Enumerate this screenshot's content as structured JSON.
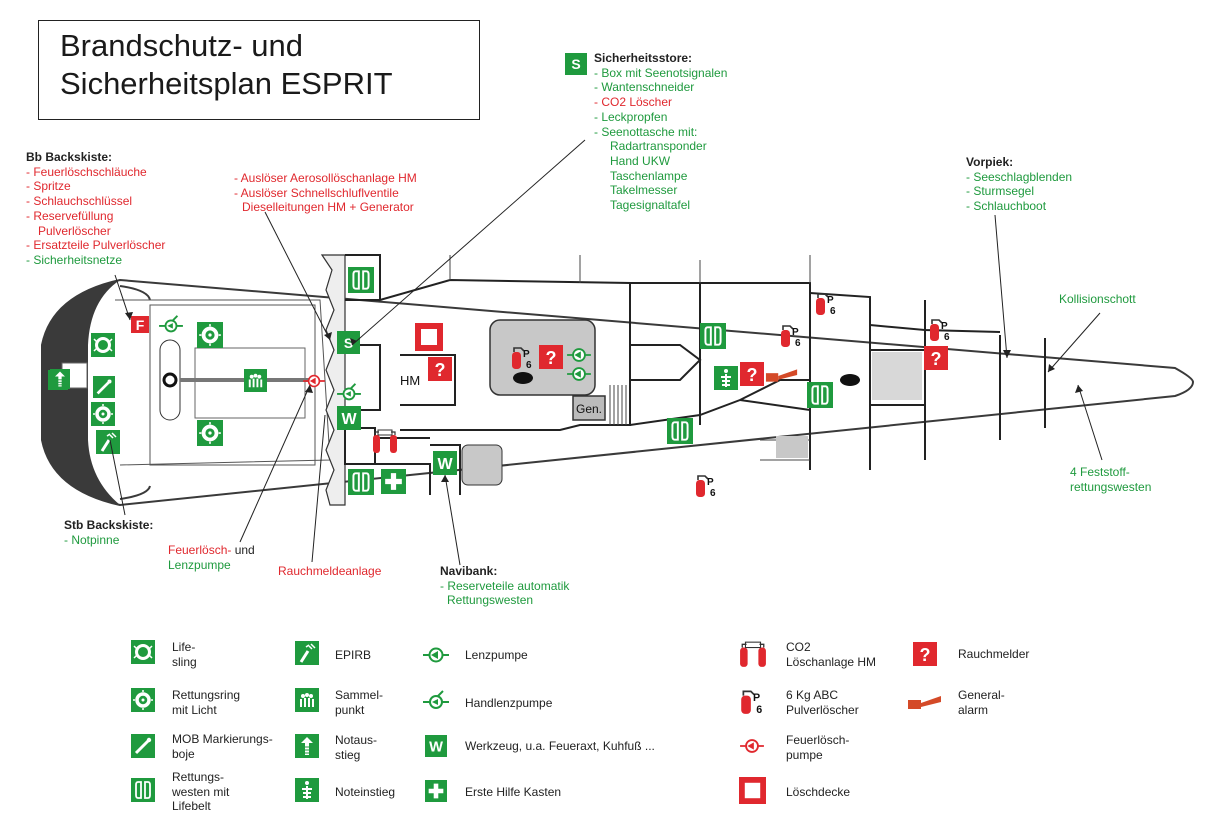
{
  "title": {
    "line1": "Brandschutz- und",
    "line2": "Sicherheitsplan ESPRIT"
  },
  "callouts": {
    "bb": {
      "heading": "Bb Backskiste:",
      "items": [
        "- Feuerlöschschläuche",
        "- Spritze",
        "- Schlauchschlüssel",
        "- Reservefüllung",
        "Pulverlöscher",
        "- Ersatzteile Pulverlöscher",
        "- Sicherheitsnetze"
      ]
    },
    "ausloeser": {
      "items": [
        "- Auslöser Aerosollöschanlage HM",
        "- Auslöser Schnellschluflventile",
        "Dieselleitungen HM + Generator"
      ]
    },
    "store": {
      "heading": "Sicherheitsstore:",
      "items": [
        "- Box mit Seenotsignalen",
        "- Wantenschneider",
        "- CO2 Löscher",
        "- Leckpropfen",
        "- Seenottasche mit:"
      ],
      "subitems": [
        "Radartransponder",
        "Hand UKW",
        "Taschenlampe",
        "Takelmesser",
        "Tagesignaltafel"
      ]
    },
    "vorpiek": {
      "heading": "Vorpiek:",
      "items": [
        "- Seeschlagblenden",
        "- Sturmsegel",
        "- Schlauchboot"
      ]
    },
    "kollision": "Kollisionschott",
    "feststoff": [
      "4 Feststoff-",
      "rettungswesten"
    ],
    "stb": {
      "heading": "Stb Backskiste:",
      "items": [
        "- Notpinne"
      ]
    },
    "feuerloesch": {
      "part1": "Feuerlösch-",
      "part2": " und",
      "line2": "Lenzpumpe"
    },
    "rauchmelde": "Rauchmeldeanlage",
    "navibank": {
      "heading": "Navibank:",
      "items": [
        "- Reserveteile automatik",
        "Rettungswesten"
      ]
    }
  },
  "diagram_labels": {
    "hm": "HM",
    "gen": "Gen.",
    "s": "S",
    "w": "W",
    "f": "F",
    "p6": "P 6",
    "question": "?"
  },
  "legend": [
    {
      "icon": "lifesling-icon",
      "lines": [
        "Life-",
        "sling"
      ]
    },
    {
      "icon": "rettungsring-icon",
      "lines": [
        "Rettungsring",
        "mit Licht"
      ]
    },
    {
      "icon": "mob-boje-icon",
      "lines": [
        "MOB Markierungs-",
        "boje"
      ]
    },
    {
      "icon": "rettungsweste-icon",
      "lines": [
        "Rettungs-",
        "westen mit",
        "Lifebelt"
      ]
    },
    {
      "icon": "epirb-icon",
      "lines": [
        "EPIRB"
      ]
    },
    {
      "icon": "sammelpunkt-icon",
      "lines": [
        "Sammel-",
        "punkt"
      ]
    },
    {
      "icon": "notausstieg-icon",
      "lines": [
        "Notaus-",
        "stieg"
      ]
    },
    {
      "icon": "noteinstieg-icon",
      "lines": [
        "Noteinstieg"
      ]
    },
    {
      "icon": "lenzpumpe-icon",
      "lines": [
        "Lenzpumpe"
      ]
    },
    {
      "icon": "handlenzpumpe-icon",
      "lines": [
        "Handlenzpumpe"
      ]
    },
    {
      "icon": "werkzeug-icon",
      "lines": [
        "Werkzeug, u.a. Feueraxt, Kuhfuß ..."
      ]
    },
    {
      "icon": "erste-hilfe-icon",
      "lines": [
        "Erste Hilfe Kasten"
      ]
    },
    {
      "icon": "co2-icon",
      "lines": [
        "CO2",
        "Löschanlage HM"
      ]
    },
    {
      "icon": "pulverloescher-icon",
      "lines": [
        "6 Kg ABC",
        "Pulverlöscher"
      ]
    },
    {
      "icon": "feuerloeschpumpe-icon",
      "lines": [
        "Feuerlösch-",
        "pumpe"
      ]
    },
    {
      "icon": "loeschdecke-icon",
      "lines": [
        "Löschdecke"
      ]
    },
    {
      "icon": "rauchmelder-icon",
      "lines": [
        "Rauchmelder"
      ]
    },
    {
      "icon": "generalalarm-icon",
      "lines": [
        "General-",
        "alarm"
      ]
    }
  ],
  "colors": {
    "safety_green": "#1f9a3e",
    "fire_red": "#e0282e",
    "hull_dark": "#3a3a3a",
    "compartment_grey": "#c8c8c8"
  }
}
